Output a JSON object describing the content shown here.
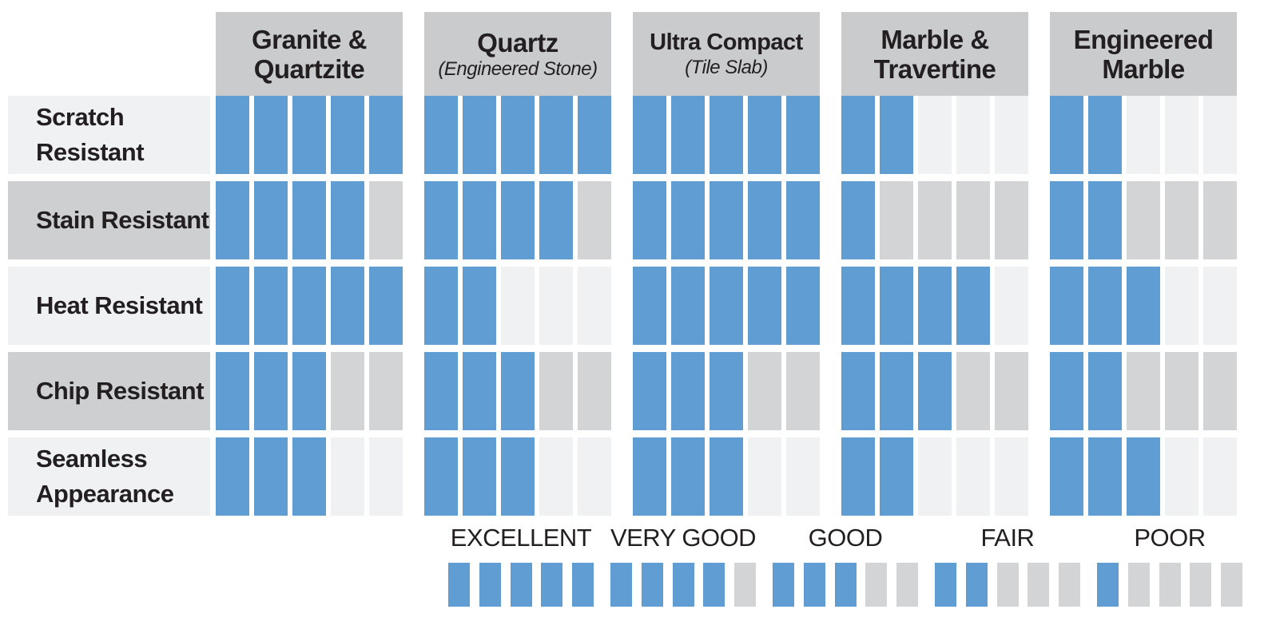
{
  "colors": {
    "bar_filled": "#609dd2",
    "bar_empty_light": "#eff1f3",
    "bar_empty_gray": "#d2d4d5",
    "row_bg_light": "#f0f1f3",
    "row_bg_gray": "#cdcfd1",
    "header_bg": "#c9cbcd",
    "text": "#231f20",
    "page_bg": "#ffffff"
  },
  "chart_data": {
    "type": "table",
    "title": "",
    "max_rating": 5,
    "columns": [
      {
        "title": "Granite & Quartzite",
        "subtitle": ""
      },
      {
        "title": "Quartz",
        "subtitle": "(Engineered Stone)"
      },
      {
        "title": "Ultra Compact",
        "subtitle": "(Tile Slab)"
      },
      {
        "title": "Marble & Travertine",
        "subtitle": ""
      },
      {
        "title": "Engineered Marble",
        "subtitle": ""
      }
    ],
    "rows": [
      "Scratch Resistant",
      "Stain Resistant",
      "Heat Resistant",
      "Chip Resistant",
      "Seamless Appearance"
    ],
    "ratings": [
      [
        5,
        5,
        5,
        2,
        2
      ],
      [
        4,
        4,
        5,
        1,
        2
      ],
      [
        5,
        2,
        5,
        4,
        3
      ],
      [
        3,
        3,
        3,
        3,
        2
      ],
      [
        3,
        3,
        3,
        2,
        3
      ]
    ],
    "legend": [
      {
        "label": "EXCELLENT",
        "value": 5
      },
      {
        "label": "VERY GOOD",
        "value": 4
      },
      {
        "label": "GOOD",
        "value": 3
      },
      {
        "label": "FAIR",
        "value": 2
      },
      {
        "label": "POOR",
        "value": 1
      }
    ]
  }
}
